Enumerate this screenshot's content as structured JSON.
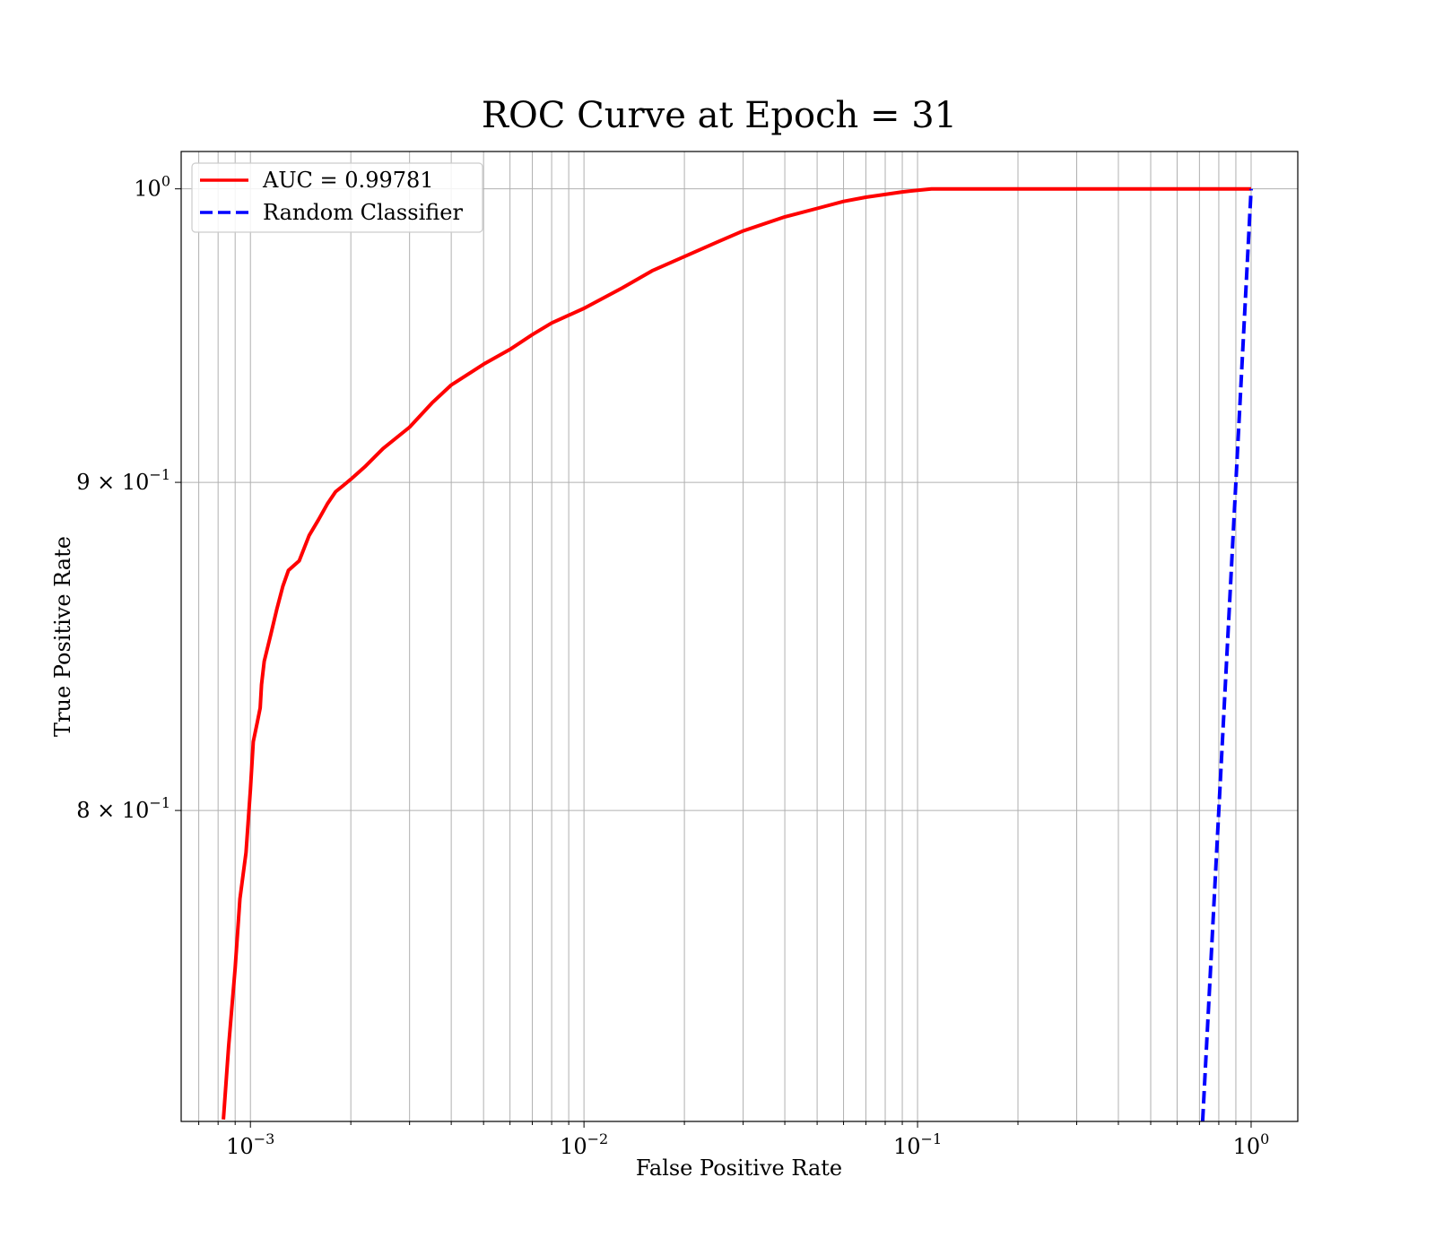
{
  "chart_data": {
    "type": "line",
    "title": "ROC Curve at Epoch = 31",
    "xlabel": "False Positive Rate",
    "ylabel": "True Positive Rate",
    "xscale": "log",
    "yscale": "log",
    "xlim": [
      0.00062,
      1.38
    ],
    "ylim": [
      0.7155,
      1.0135
    ],
    "grid": "both",
    "legend_position": "top-left",
    "x_ticks": [
      {
        "value": 0.001,
        "base": "10",
        "exp": "−3"
      },
      {
        "value": 0.01,
        "base": "10",
        "exp": "−2"
      },
      {
        "value": 0.1,
        "base": "10",
        "exp": "−1"
      },
      {
        "value": 1,
        "base": "10",
        "exp": "0"
      }
    ],
    "y_ticks": [
      {
        "value": 1.0,
        "base": "10",
        "exp": "0"
      },
      {
        "value": 0.9,
        "base": "9 × 10",
        "exp": "−1"
      },
      {
        "value": 0.8,
        "base": "8 × 10",
        "exp": "−1"
      }
    ],
    "series": [
      {
        "name": "AUC = 0.99781",
        "color": "#ff0000",
        "style": "solid",
        "x": [
          0.00083,
          0.00086,
          0.0009,
          0.00093,
          0.00097,
          0.001,
          0.00102,
          0.00105,
          0.00107,
          0.00108,
          0.0011,
          0.00115,
          0.0012,
          0.00125,
          0.0013,
          0.0014,
          0.0015,
          0.0016,
          0.0017,
          0.0018,
          0.0019,
          0.002,
          0.0022,
          0.0025,
          0.003,
          0.0035,
          0.004,
          0.005,
          0.006,
          0.007,
          0.008,
          0.01,
          0.013,
          0.016,
          0.02,
          0.025,
          0.03,
          0.04,
          0.05,
          0.06,
          0.07,
          0.08,
          0.09,
          0.1,
          0.11,
          0.2,
          0.5,
          1.0
        ],
        "y": [
          0.716,
          0.735,
          0.756,
          0.775,
          0.788,
          0.806,
          0.82,
          0.826,
          0.83,
          0.837,
          0.844,
          0.852,
          0.86,
          0.867,
          0.872,
          0.875,
          0.883,
          0.888,
          0.893,
          0.897,
          0.899,
          0.901,
          0.905,
          0.911,
          0.918,
          0.926,
          0.932,
          0.939,
          0.944,
          0.949,
          0.953,
          0.958,
          0.965,
          0.971,
          0.976,
          0.981,
          0.985,
          0.99,
          0.993,
          0.9955,
          0.997,
          0.998,
          0.9989,
          0.9995,
          1.0,
          1.0,
          1.0,
          1.0
        ]
      },
      {
        "name": "Random Classifier",
        "color": "#0000ff",
        "style": "dashed",
        "x": [
          0.7155,
          1.0
        ],
        "y": [
          0.7155,
          1.0
        ]
      }
    ]
  }
}
